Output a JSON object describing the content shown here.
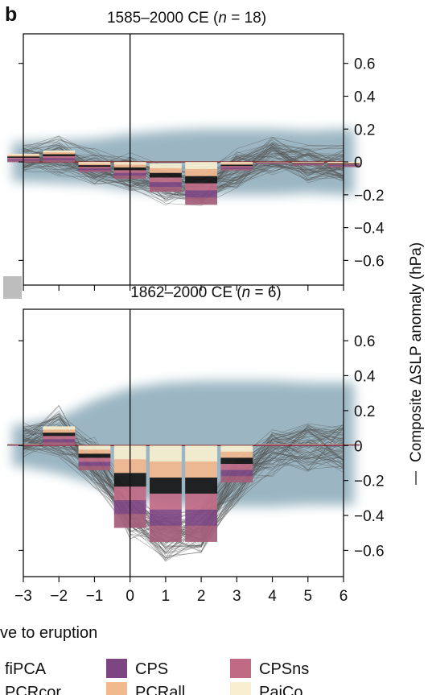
{
  "figure": {
    "panel_letter": "b",
    "xlabel_partial": "ve to eruption",
    "ylabel": "Composite ΔSLP anomaly (hPa)"
  },
  "legend": {
    "items": [
      {
        "label": "fiPCA",
        "color": ""
      },
      {
        "label": "CPS",
        "color": "#7d4682"
      },
      {
        "label": "CPSns",
        "color": "#c06a86"
      },
      {
        "label": "PCRcor",
        "color": ""
      },
      {
        "label": "PCRall",
        "color": "#f2b98f"
      },
      {
        "label": "PaiCo",
        "color": "#f7efcf"
      }
    ]
  },
  "chart_data": [
    {
      "type": "bar",
      "title": "1585–2000 CE (n = 18)",
      "title_prefix": "1585–2000 CE (",
      "title_n": "n",
      "title_suffix": " = 18)",
      "x": [
        -3,
        -2,
        -1,
        0,
        1,
        2,
        3,
        4,
        5,
        6
      ],
      "xlim": [
        -3,
        6
      ],
      "ylim": [
        -0.75,
        0.78
      ],
      "yticks": [
        0.6,
        0.4,
        0.2,
        0,
        -0.2,
        -0.4,
        -0.6
      ],
      "ytick_labels": [
        "0.6",
        "0.4",
        "0.2",
        "0",
        "−0.2",
        "−0.4",
        "−0.6"
      ],
      "eruption_x": 0,
      "composite_bars": [
        {
          "lag": -3,
          "min": 0.0,
          "max": 0.05
        },
        {
          "lag": -2,
          "min": 0.0,
          "max": 0.07
        },
        {
          "lag": -1,
          "min": -0.06,
          "max": 0.0
        },
        {
          "lag": 0,
          "min": -0.1,
          "max": 0.0
        },
        {
          "lag": 1,
          "min": -0.18,
          "max": -0.01
        },
        {
          "lag": 2,
          "min": -0.26,
          "max": 0.0
        },
        {
          "lag": 3,
          "min": -0.05,
          "max": 0.0
        },
        {
          "lag": 4,
          "min": -0.01,
          "max": 0.0
        },
        {
          "lag": 5,
          "min": -0.02,
          "max": 0.0
        },
        {
          "lag": 6,
          "min": -0.03,
          "max": 0.0
        }
      ],
      "envelope": {
        "x": [
          -3,
          -2,
          -1,
          0,
          1,
          2,
          3,
          4,
          5,
          6
        ],
        "upper": [
          0.12,
          0.13,
          0.14,
          0.17,
          0.19,
          0.2,
          0.2,
          0.2,
          0.19,
          0.2
        ],
        "lower": [
          -0.12,
          -0.13,
          -0.14,
          -0.17,
          -0.19,
          -0.2,
          -0.2,
          -0.2,
          -0.19,
          -0.2
        ]
      },
      "member_mean": [
        0.02,
        0.04,
        -0.03,
        -0.06,
        -0.14,
        -0.16,
        -0.04,
        0.04,
        -0.01,
        -0.01
      ]
    },
    {
      "type": "bar",
      "title": "1862–2000 CE (n = 6)",
      "title_prefix": "1862–2000 CE (",
      "title_n": "n",
      "title_suffix": " = 6)",
      "x": [
        -3,
        -2,
        -1,
        0,
        1,
        2,
        3,
        4,
        5,
        6
      ],
      "xlim": [
        -3,
        6
      ],
      "ylim": [
        -0.75,
        0.78
      ],
      "yticks": [
        0.6,
        0.4,
        0.2,
        0,
        -0.2,
        -0.4,
        -0.6
      ],
      "ytick_labels": [
        "0.6",
        "0.4",
        "0.2",
        "0",
        "−0.2",
        "−0.4",
        "−0.6"
      ],
      "xtick_labels": [
        "−3",
        "−2",
        "−1",
        "0",
        "1",
        "2",
        "3",
        "4",
        "5",
        "6"
      ],
      "eruption_x": 0,
      "composite_bars": [
        {
          "lag": -3,
          "min": 0.0,
          "max": 0.01
        },
        {
          "lag": -2,
          "min": 0.0,
          "max": 0.11
        },
        {
          "lag": -1,
          "min": -0.14,
          "max": 0.0
        },
        {
          "lag": 0,
          "min": -0.47,
          "max": 0.0
        },
        {
          "lag": 1,
          "min": -0.55,
          "max": 0.0
        },
        {
          "lag": 2,
          "min": -0.55,
          "max": 0.0
        },
        {
          "lag": 3,
          "min": -0.21,
          "max": 0.0
        },
        {
          "lag": 4,
          "min": 0.0,
          "max": 0.01
        },
        {
          "lag": 5,
          "min": 0.0,
          "max": 0.01
        },
        {
          "lag": 6,
          "min": 0.0,
          "max": 0.01
        }
      ],
      "envelope": {
        "x": [
          -3,
          -2,
          -1,
          0,
          1,
          2,
          3,
          4,
          5,
          6
        ],
        "upper": [
          0.12,
          0.16,
          0.26,
          0.33,
          0.36,
          0.37,
          0.37,
          0.37,
          0.36,
          0.36
        ],
        "lower": [
          -0.12,
          -0.16,
          -0.22,
          -0.3,
          -0.34,
          -0.35,
          -0.35,
          -0.35,
          -0.34,
          -0.34
        ]
      },
      "member_mean": [
        0.03,
        0.08,
        -0.1,
        -0.38,
        -0.52,
        -0.48,
        -0.2,
        -0.04,
        -0.01,
        0.0
      ]
    }
  ]
}
